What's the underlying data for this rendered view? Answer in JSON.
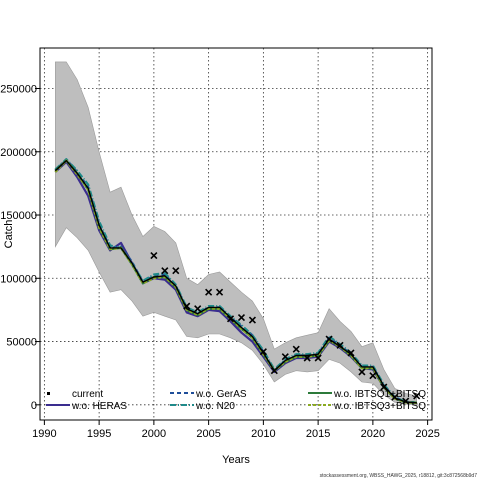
{
  "chart_data": {
    "type": "line",
    "title": "",
    "xlabel": "Years",
    "ylabel": "Catch",
    "xlim": [
      1989.6,
      2025.4
    ],
    "ylim": [
      -12000,
      282000
    ],
    "xticks": [
      1990,
      1995,
      2000,
      2005,
      2010,
      2015,
      2020,
      2025
    ],
    "yticks": [
      0,
      50000,
      100000,
      150000,
      200000,
      250000
    ],
    "grid": true,
    "legend_position": "bottom",
    "footnote": "stockassessment.org, WBSS_HAWG_2025, r18812, git:3c872568b9d7",
    "colors": {
      "band": "#bebebe",
      "current": "#000000",
      "heras": "#3a2d8f",
      "geras": "#1f4e9a",
      "n20": "#1f8a8a",
      "ibtsq": "#2c7a3a",
      "ibtsq3": "#8aaa20"
    },
    "years": [
      1991,
      1992,
      1993,
      1994,
      1995,
      1996,
      1997,
      1998,
      1999,
      2000,
      2001,
      2002,
      2003,
      2004,
      2005,
      2006,
      2007,
      2008,
      2009,
      2010,
      2011,
      2012,
      2013,
      2014,
      2015,
      2016,
      2017,
      2018,
      2019,
      2020,
      2021,
      2022,
      2023,
      2024
    ],
    "band_upper": [
      271000,
      271000,
      257000,
      235000,
      200000,
      168000,
      172000,
      150000,
      133000,
      141000,
      137000,
      128000,
      100000,
      95000,
      103000,
      105000,
      97000,
      89000,
      82000,
      68000,
      44000,
      49000,
      53000,
      55000,
      57000,
      76000,
      66000,
      58000,
      46000,
      49000,
      28000,
      13000,
      9000,
      7000
    ],
    "band_lower": [
      125000,
      140000,
      132000,
      122000,
      105000,
      89000,
      91000,
      82000,
      70000,
      73000,
      70000,
      67000,
      54000,
      53000,
      56000,
      56000,
      53000,
      49000,
      43000,
      32000,
      18000,
      24000,
      27000,
      26000,
      27000,
      36000,
      33000,
      26000,
      18000,
      17000,
      8000,
      2000,
      500,
      0
    ],
    "series": [
      {
        "name": "w.o. HERAS",
        "key": "heras",
        "dash": "",
        "values": [
          184000,
          192000,
          180000,
          165000,
          138000,
          122000,
          128000,
          112000,
          96000,
          100000,
          99000,
          91000,
          73000,
          70000,
          75000,
          74000,
          66000,
          57000,
          50000,
          38000,
          26000,
          33000,
          37000,
          37000,
          38000,
          50000,
          45000,
          38000,
          29000,
          28000,
          14000,
          5000,
          2000,
          1500
        ]
      },
      {
        "name": "w.o. GerAS",
        "key": "geras",
        "dash": "4,3",
        "values": [
          185000,
          194000,
          184000,
          172000,
          143000,
          124000,
          125000,
          113000,
          97000,
          102000,
          103000,
          94000,
          76000,
          72000,
          77000,
          77000,
          69000,
          62000,
          55000,
          42000,
          27000,
          35000,
          39000,
          39000,
          40000,
          53000,
          47000,
          40000,
          30000,
          30000,
          15000,
          6000,
          2500,
          1800
        ]
      },
      {
        "name": "w.o. N20",
        "key": "n20",
        "dash": "6,2,1,2",
        "values": [
          186000,
          194000,
          185000,
          174000,
          145000,
          126000,
          124000,
          112000,
          98000,
          103000,
          104000,
          95000,
          77000,
          73000,
          78000,
          78000,
          70000,
          63000,
          55000,
          43000,
          28000,
          36000,
          40000,
          40000,
          41000,
          54000,
          48000,
          41000,
          31000,
          31000,
          16000,
          6000,
          2500,
          1800
        ]
      },
      {
        "name": "w.o. IBTSQ1+BITSQ",
        "key": "ibtsq",
        "dash": "",
        "values": [
          185000,
          193000,
          183000,
          170000,
          141000,
          123000,
          124000,
          111000,
          96000,
          101000,
          101000,
          93000,
          75000,
          71000,
          76000,
          76000,
          68000,
          60000,
          53000,
          40000,
          27000,
          34000,
          38000,
          38000,
          39000,
          51000,
          46000,
          39000,
          29000,
          29000,
          14000,
          5000,
          2000,
          1500
        ]
      },
      {
        "name": "w.o. IBTSQ3+BITSQ",
        "key": "ibtsq3",
        "dash": "3,2",
        "values": [
          184000,
          193000,
          182000,
          170000,
          140000,
          123000,
          124000,
          111000,
          96000,
          100000,
          101000,
          93000,
          75000,
          71000,
          76000,
          76000,
          68000,
          60000,
          53000,
          40000,
          27000,
          34000,
          38000,
          38000,
          39000,
          51000,
          46000,
          39000,
          29000,
          29000,
          14000,
          5000,
          2000,
          1500
        ]
      },
      {
        "name": "current",
        "key": "current",
        "dash": "",
        "values": [
          185000,
          193000,
          183000,
          171000,
          142000,
          124000,
          124000,
          112000,
          97000,
          101000,
          102000,
          94000,
          76000,
          72000,
          77000,
          77000,
          69000,
          61000,
          54000,
          41000,
          27000,
          35000,
          39000,
          39000,
          40000,
          52000,
          46000,
          40000,
          30000,
          30000,
          15000,
          5500,
          2200,
          1600
        ]
      }
    ],
    "observed_years": [
      2000,
      2001,
      2002,
      2003,
      2004,
      2005,
      2006,
      2007,
      2008,
      2009,
      2010,
      2011,
      2012,
      2013,
      2014,
      2015,
      2016,
      2017,
      2018,
      2019,
      2020,
      2021,
      2022,
      2023,
      2024
    ],
    "observed": [
      118000,
      106000,
      106000,
      78000,
      76000,
      89000,
      89000,
      68000,
      69000,
      67000,
      42000,
      27000,
      38000,
      44000,
      37000,
      37000,
      52000,
      47000,
      41000,
      26000,
      23000,
      14000,
      6000,
      3000,
      7000
    ],
    "legend": [
      {
        "label": "current",
        "key": "current",
        "dash": ""
      },
      {
        "label": "w.o. HERAS",
        "key": "heras",
        "dash": ""
      },
      {
        "label": "w.o. GerAS",
        "key": "geras",
        "dash": "4,3"
      },
      {
        "label": "w.o. N20",
        "key": "n20",
        "dash": "6,2,1,2"
      },
      {
        "label": "w.o. IBTSQ1+BITSQ",
        "key": "ibtsq",
        "dash": ""
      },
      {
        "label": "w.o. IBTSQ3+BITSQ",
        "key": "ibtsq3",
        "dash": "3,2"
      }
    ]
  }
}
